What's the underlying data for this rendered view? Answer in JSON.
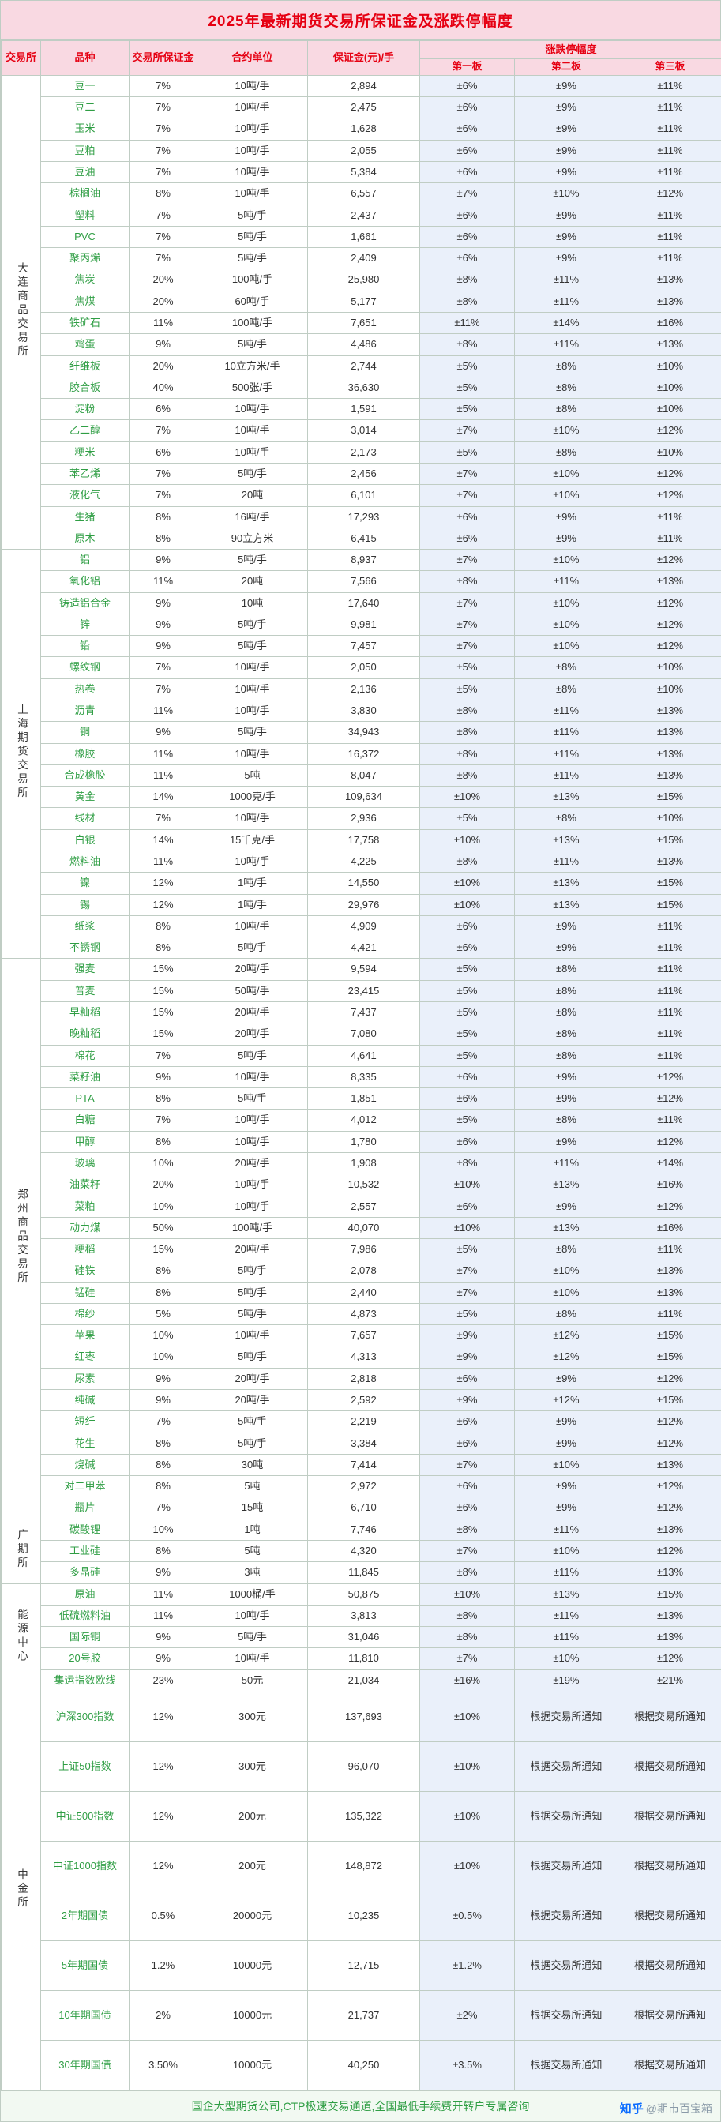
{
  "title": "2025年最新期货交易所保证金及涨跌停幅度",
  "header": {
    "exchange": "交易所",
    "variety": "品种",
    "margin_rate": "交易所保证金",
    "unit": "合约单位",
    "margin_per_lot": "保证金(元)/手",
    "limit_group": "涨跌停幅度",
    "board1": "第一板",
    "board2": "第二板",
    "board3": "第三板"
  },
  "exchanges": [
    {
      "name": "大连商品交易所",
      "rows": [
        [
          "豆一",
          "7%",
          "10吨/手",
          "2,894",
          "±6%",
          "±9%",
          "±11%"
        ],
        [
          "豆二",
          "7%",
          "10吨/手",
          "2,475",
          "±6%",
          "±9%",
          "±11%"
        ],
        [
          "玉米",
          "7%",
          "10吨/手",
          "1,628",
          "±6%",
          "±9%",
          "±11%"
        ],
        [
          "豆粕",
          "7%",
          "10吨/手",
          "2,055",
          "±6%",
          "±9%",
          "±11%"
        ],
        [
          "豆油",
          "7%",
          "10吨/手",
          "5,384",
          "±6%",
          "±9%",
          "±11%"
        ],
        [
          "棕榈油",
          "8%",
          "10吨/手",
          "6,557",
          "±7%",
          "±10%",
          "±12%"
        ],
        [
          "塑料",
          "7%",
          "5吨/手",
          "2,437",
          "±6%",
          "±9%",
          "±11%"
        ],
        [
          "PVC",
          "7%",
          "5吨/手",
          "1,661",
          "±6%",
          "±9%",
          "±11%"
        ],
        [
          "聚丙烯",
          "7%",
          "5吨/手",
          "2,409",
          "±6%",
          "±9%",
          "±11%"
        ],
        [
          "焦炭",
          "20%",
          "100吨/手",
          "25,980",
          "±8%",
          "±11%",
          "±13%"
        ],
        [
          "焦煤",
          "20%",
          "60吨/手",
          "5,177",
          "±8%",
          "±11%",
          "±13%"
        ],
        [
          "铁矿石",
          "11%",
          "100吨/手",
          "7,651",
          "±11%",
          "±14%",
          "±16%"
        ],
        [
          "鸡蛋",
          "9%",
          "5吨/手",
          "4,486",
          "±8%",
          "±11%",
          "±13%"
        ],
        [
          "纤维板",
          "20%",
          "10立方米/手",
          "2,744",
          "±5%",
          "±8%",
          "±10%"
        ],
        [
          "胶合板",
          "40%",
          "500张/手",
          "36,630",
          "±5%",
          "±8%",
          "±10%"
        ],
        [
          "淀粉",
          "6%",
          "10吨/手",
          "1,591",
          "±5%",
          "±8%",
          "±10%"
        ],
        [
          "乙二醇",
          "7%",
          "10吨/手",
          "3,014",
          "±7%",
          "±10%",
          "±12%"
        ],
        [
          "粳米",
          "6%",
          "10吨/手",
          "2,173",
          "±5%",
          "±8%",
          "±10%"
        ],
        [
          "苯乙烯",
          "7%",
          "5吨/手",
          "2,456",
          "±7%",
          "±10%",
          "±12%"
        ],
        [
          "液化气",
          "7%",
          "20吨",
          "6,101",
          "±7%",
          "±10%",
          "±12%"
        ],
        [
          "生猪",
          "8%",
          "16吨/手",
          "17,293",
          "±6%",
          "±9%",
          "±11%"
        ],
        [
          "原木",
          "8%",
          "90立方米",
          "6,415",
          "±6%",
          "±9%",
          "±11%"
        ]
      ]
    },
    {
      "name": "上海期货交易所",
      "rows": [
        [
          "铝",
          "9%",
          "5吨/手",
          "8,937",
          "±7%",
          "±10%",
          "±12%"
        ],
        [
          "氧化铝",
          "11%",
          "20吨",
          "7,566",
          "±8%",
          "±11%",
          "±13%"
        ],
        [
          "铸造铝合金",
          "9%",
          "10吨",
          "17,640",
          "±7%",
          "±10%",
          "±12%"
        ],
        [
          "锌",
          "9%",
          "5吨/手",
          "9,981",
          "±7%",
          "±10%",
          "±12%"
        ],
        [
          "铅",
          "9%",
          "5吨/手",
          "7,457",
          "±7%",
          "±10%",
          "±12%"
        ],
        [
          "螺纹钢",
          "7%",
          "10吨/手",
          "2,050",
          "±5%",
          "±8%",
          "±10%"
        ],
        [
          "热卷",
          "7%",
          "10吨/手",
          "2,136",
          "±5%",
          "±8%",
          "±10%"
        ],
        [
          "沥青",
          "11%",
          "10吨/手",
          "3,830",
          "±8%",
          "±11%",
          "±13%"
        ],
        [
          "铜",
          "9%",
          "5吨/手",
          "34,943",
          "±8%",
          "±11%",
          "±13%"
        ],
        [
          "橡胶",
          "11%",
          "10吨/手",
          "16,372",
          "±8%",
          "±11%",
          "±13%"
        ],
        [
          "合成橡胶",
          "11%",
          "5吨",
          "8,047",
          "±8%",
          "±11%",
          "±13%"
        ],
        [
          "黄金",
          "14%",
          "1000克/手",
          "109,634",
          "±10%",
          "±13%",
          "±15%"
        ],
        [
          "线材",
          "7%",
          "10吨/手",
          "2,936",
          "±5%",
          "±8%",
          "±10%"
        ],
        [
          "白银",
          "14%",
          "15千克/手",
          "17,758",
          "±10%",
          "±13%",
          "±15%"
        ],
        [
          "燃料油",
          "11%",
          "10吨/手",
          "4,225",
          "±8%",
          "±11%",
          "±13%"
        ],
        [
          "镍",
          "12%",
          "1吨/手",
          "14,550",
          "±10%",
          "±13%",
          "±15%"
        ],
        [
          "锡",
          "12%",
          "1吨/手",
          "29,976",
          "±10%",
          "±13%",
          "±15%"
        ],
        [
          "纸浆",
          "8%",
          "10吨/手",
          "4,909",
          "±6%",
          "±9%",
          "±11%"
        ],
        [
          "不锈钢",
          "8%",
          "5吨/手",
          "4,421",
          "±6%",
          "±9%",
          "±11%"
        ]
      ]
    },
    {
      "name": "郑州商品交易所",
      "rows": [
        [
          "强麦",
          "15%",
          "20吨/手",
          "9,594",
          "±5%",
          "±8%",
          "±11%"
        ],
        [
          "普麦",
          "15%",
          "50吨/手",
          "23,415",
          "±5%",
          "±8%",
          "±11%"
        ],
        [
          "早籼稻",
          "15%",
          "20吨/手",
          "7,437",
          "±5%",
          "±8%",
          "±11%"
        ],
        [
          "晚籼稻",
          "15%",
          "20吨/手",
          "7,080",
          "±5%",
          "±8%",
          "±11%"
        ],
        [
          "棉花",
          "7%",
          "5吨/手",
          "4,641",
          "±5%",
          "±8%",
          "±11%"
        ],
        [
          "菜籽油",
          "9%",
          "10吨/手",
          "8,335",
          "±6%",
          "±9%",
          "±12%"
        ],
        [
          "PTA",
          "8%",
          "5吨/手",
          "1,851",
          "±6%",
          "±9%",
          "±12%"
        ],
        [
          "白糖",
          "7%",
          "10吨/手",
          "4,012",
          "±5%",
          "±8%",
          "±11%"
        ],
        [
          "甲醇",
          "8%",
          "10吨/手",
          "1,780",
          "±6%",
          "±9%",
          "±12%"
        ],
        [
          "玻璃",
          "10%",
          "20吨/手",
          "1,908",
          "±8%",
          "±11%",
          "±14%"
        ],
        [
          "油菜籽",
          "20%",
          "10吨/手",
          "10,532",
          "±10%",
          "±13%",
          "±16%"
        ],
        [
          "菜粕",
          "10%",
          "10吨/手",
          "2,557",
          "±6%",
          "±9%",
          "±12%"
        ],
        [
          "动力煤",
          "50%",
          "100吨/手",
          "40,070",
          "±10%",
          "±13%",
          "±16%"
        ],
        [
          "粳稻",
          "15%",
          "20吨/手",
          "7,986",
          "±5%",
          "±8%",
          "±11%"
        ],
        [
          "硅铁",
          "8%",
          "5吨/手",
          "2,078",
          "±7%",
          "±10%",
          "±13%"
        ],
        [
          "锰硅",
          "8%",
          "5吨/手",
          "2,440",
          "±7%",
          "±10%",
          "±13%"
        ],
        [
          "棉纱",
          "5%",
          "5吨/手",
          "4,873",
          "±5%",
          "±8%",
          "±11%"
        ],
        [
          "苹果",
          "10%",
          "10吨/手",
          "7,657",
          "±9%",
          "±12%",
          "±15%"
        ],
        [
          "红枣",
          "10%",
          "5吨/手",
          "4,313",
          "±9%",
          "±12%",
          "±15%"
        ],
        [
          "尿素",
          "9%",
          "20吨/手",
          "2,818",
          "±6%",
          "±9%",
          "±12%"
        ],
        [
          "纯碱",
          "9%",
          "20吨/手",
          "2,592",
          "±9%",
          "±12%",
          "±15%"
        ],
        [
          "短纤",
          "7%",
          "5吨/手",
          "2,219",
          "±6%",
          "±9%",
          "±12%"
        ],
        [
          "花生",
          "8%",
          "5吨/手",
          "3,384",
          "±6%",
          "±9%",
          "±12%"
        ],
        [
          "烧碱",
          "8%",
          "30吨",
          "7,414",
          "±7%",
          "±10%",
          "±13%"
        ],
        [
          "对二甲苯",
          "8%",
          "5吨",
          "2,972",
          "±6%",
          "±9%",
          "±12%"
        ],
        [
          "瓶片",
          "7%",
          "15吨",
          "6,710",
          "±6%",
          "±9%",
          "±12%"
        ]
      ]
    },
    {
      "name": "广期所",
      "rows": [
        [
          "碳酸锂",
          "10%",
          "1吨",
          "7,746",
          "±8%",
          "±11%",
          "±13%"
        ],
        [
          "工业硅",
          "8%",
          "5吨",
          "4,320",
          "±7%",
          "±10%",
          "±12%"
        ],
        [
          "多晶硅",
          "9%",
          "3吨",
          "11,845",
          "±8%",
          "±11%",
          "±13%"
        ]
      ]
    },
    {
      "name": "能源中心",
      "rows": [
        [
          "原油",
          "11%",
          "1000桶/手",
          "50,875",
          "±10%",
          "±13%",
          "±15%"
        ],
        [
          "低硫燃料油",
          "11%",
          "10吨/手",
          "3,813",
          "±8%",
          "±11%",
          "±13%"
        ],
        [
          "国际铜",
          "9%",
          "5吨/手",
          "31,046",
          "±8%",
          "±11%",
          "±13%"
        ],
        [
          "20号胶",
          "9%",
          "10吨/手",
          "11,810",
          "±7%",
          "±10%",
          "±12%"
        ],
        [
          "集运指数欧线",
          "23%",
          "50元",
          "21,034",
          "±16%",
          "±19%",
          "±21%"
        ]
      ]
    },
    {
      "name": "中金所",
      "rows": [
        [
          "沪深300指数",
          "12%",
          "300元",
          "137,693",
          "±10%",
          "根据交易所通知",
          "根据交易所通知"
        ],
        [
          "上证50指数",
          "12%",
          "300元",
          "96,070",
          "±10%",
          "根据交易所通知",
          "根据交易所通知"
        ],
        [
          "中证500指数",
          "12%",
          "200元",
          "135,322",
          "±10%",
          "根据交易所通知",
          "根据交易所通知"
        ],
        [
          "中证1000指数",
          "12%",
          "200元",
          "148,872",
          "±10%",
          "根据交易所通知",
          "根据交易所通知"
        ],
        [
          "2年期国债",
          "0.5%",
          "20000元",
          "10,235",
          "±0.5%",
          "根据交易所通知",
          "根据交易所通知"
        ],
        [
          "5年期国债",
          "1.2%",
          "10000元",
          "12,715",
          "±1.2%",
          "根据交易所通知",
          "根据交易所通知"
        ],
        [
          "10年期国债",
          "2%",
          "10000元",
          "21,737",
          "±2%",
          "根据交易所通知",
          "根据交易所通知"
        ],
        [
          "30年期国债",
          "3.50%",
          "10000元",
          "40,250",
          "±3.5%",
          "根据交易所通知",
          "根据交易所通知"
        ]
      ]
    }
  ],
  "footer": {
    "promo": "国企大型期货公司,CTP极速交易通道,全国最低手续费开转户专属咨询"
  },
  "watermark": {
    "logo": "知乎",
    "handle": "@期市百宝箱"
  },
  "colors": {
    "title_text": "#e60012",
    "header_bg": "#f9d9e2",
    "variety_text": "#2f9e44",
    "limit_col_bg": "#eaf0fa",
    "border": "#c0cdc4",
    "footer_text": "#2f9e44",
    "zhihu_blue": "#0b6cff"
  }
}
